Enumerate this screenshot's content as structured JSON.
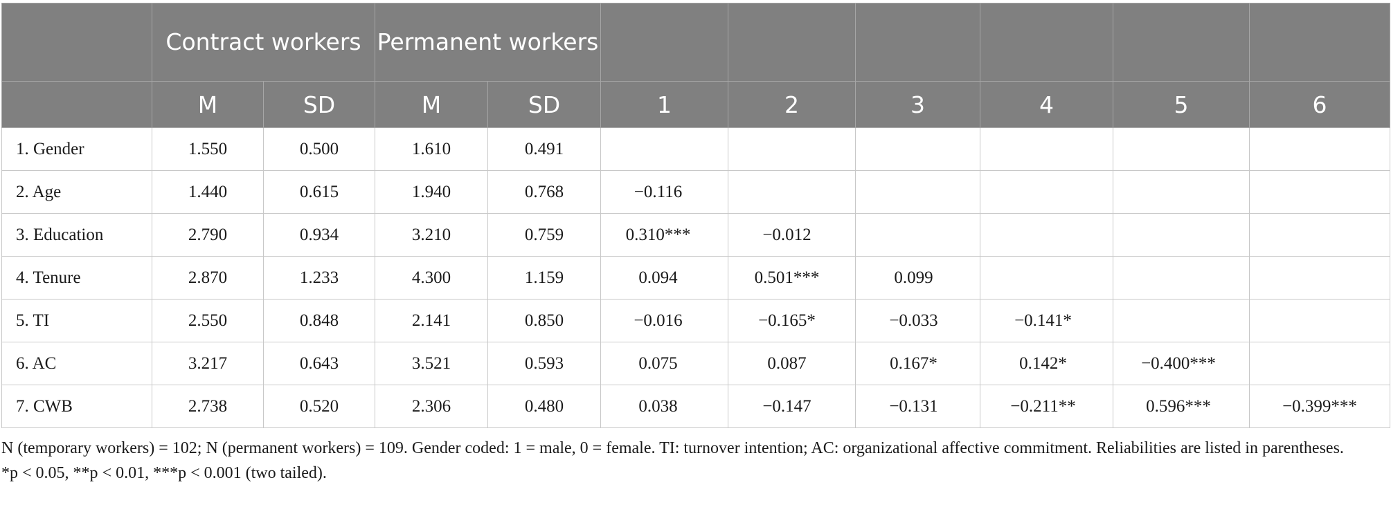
{
  "table": {
    "header_row1": [
      "",
      "Contract workers",
      "Permanent workers",
      "",
      "",
      "",
      "",
      "",
      ""
    ],
    "header_row2": [
      "",
      "M",
      "SD",
      "M",
      "SD",
      "1",
      "2",
      "3",
      "4",
      "5",
      "6"
    ],
    "rows": [
      [
        "1. Gender",
        "1.550",
        "0.500",
        "1.610",
        "0.491",
        "",
        "",
        "",
        "",
        "",
        ""
      ],
      [
        "2. Age",
        "1.440",
        "0.615",
        "1.940",
        "0.768",
        "−0.116",
        "",
        "",
        "",
        "",
        ""
      ],
      [
        "3. Education",
        "2.790",
        "0.934",
        "3.210",
        "0.759",
        "0.310***",
        "−0.012",
        "",
        "",
        "",
        ""
      ],
      [
        "4. Tenure",
        "2.870",
        "1.233",
        "4.300",
        "1.159",
        "0.094",
        "0.501***",
        "0.099",
        "",
        "",
        ""
      ],
      [
        "5. TI",
        "2.550",
        "0.848",
        "2.141",
        "0.850",
        "−0.016",
        "−0.165*",
        "−0.033",
        "−0.141*",
        "",
        ""
      ],
      [
        "6. AC",
        "3.217",
        "0.643",
        "3.521",
        "0.593",
        "0.075",
        "0.087",
        "0.167*",
        "0.142*",
        "−0.400***",
        ""
      ],
      [
        "7. CWB",
        "2.738",
        "0.520",
        "2.306",
        "0.480",
        "0.038",
        "−0.147",
        "−0.131",
        "−0.211**",
        "0.596***",
        "−0.399***"
      ]
    ]
  },
  "notes": {
    "line1": "N (temporary workers) = 102; N (permanent workers) = 109. Gender coded: 1 = male, 0 = female. TI: turnover intention; AC: organizational affective commitment. Reliabilities are listed in parentheses.",
    "line2": "*p < 0.05, **p < 0.01, ***p < 0.001 (two tailed)."
  }
}
